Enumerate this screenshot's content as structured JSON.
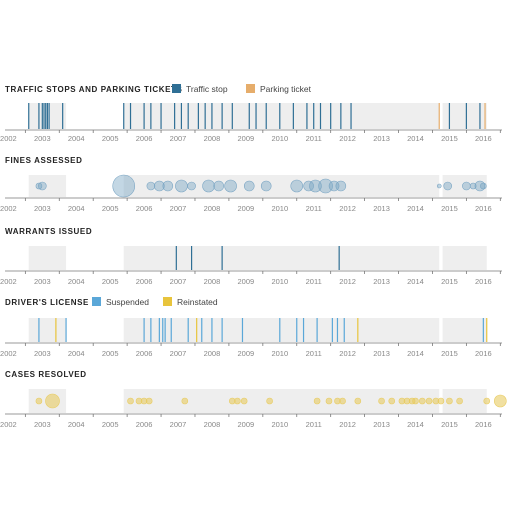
{
  "colors": {
    "traffic": "#2f6f95",
    "parking": "#e6ad6b",
    "suspended": "#5aa7d8",
    "reinstated": "#e8c43c",
    "fines": "#7ba6c4",
    "cases": "#e8cc62",
    "band": "#eeeeee",
    "axis": "#777777"
  },
  "chart_data": [
    {
      "type": "timeline",
      "title": "TRAFFIC STOPS AND PARKING TICKETS",
      "legend": [
        {
          "label": "Traffic stop",
          "color": "#2f6f95"
        },
        {
          "label": "Parking ticket",
          "color": "#e6ad6b"
        }
      ],
      "shaded_ranges": [
        [
          2002.6,
          2003.7
        ],
        [
          2005.4,
          2014.7
        ],
        [
          2014.8,
          2016.1
        ]
      ],
      "events": [
        {
          "x": 2002.6,
          "series": "Traffic stop"
        },
        {
          "x": 2002.9,
          "series": "Traffic stop"
        },
        {
          "x": 2003.0,
          "series": "Traffic stop"
        },
        {
          "x": 2003.05,
          "series": "Traffic stop"
        },
        {
          "x": 2003.1,
          "series": "Traffic stop"
        },
        {
          "x": 2003.15,
          "series": "Traffic stop"
        },
        {
          "x": 2003.2,
          "series": "Traffic stop"
        },
        {
          "x": 2003.6,
          "series": "Traffic stop"
        },
        {
          "x": 2005.4,
          "series": "Traffic stop"
        },
        {
          "x": 2005.6,
          "series": "Traffic stop"
        },
        {
          "x": 2006.0,
          "series": "Traffic stop"
        },
        {
          "x": 2006.2,
          "series": "Traffic stop"
        },
        {
          "x": 2006.5,
          "series": "Traffic stop"
        },
        {
          "x": 2006.9,
          "series": "Traffic stop"
        },
        {
          "x": 2007.1,
          "series": "Traffic stop"
        },
        {
          "x": 2007.3,
          "series": "Traffic stop"
        },
        {
          "x": 2007.6,
          "series": "Traffic stop"
        },
        {
          "x": 2007.8,
          "series": "Traffic stop"
        },
        {
          "x": 2008.0,
          "series": "Traffic stop"
        },
        {
          "x": 2008.3,
          "series": "Traffic stop"
        },
        {
          "x": 2008.6,
          "series": "Traffic stop"
        },
        {
          "x": 2009.1,
          "series": "Traffic stop"
        },
        {
          "x": 2009.3,
          "series": "Traffic stop"
        },
        {
          "x": 2009.6,
          "series": "Traffic stop"
        },
        {
          "x": 2010.0,
          "series": "Traffic stop"
        },
        {
          "x": 2010.4,
          "series": "Traffic stop"
        },
        {
          "x": 2010.8,
          "series": "Traffic stop"
        },
        {
          "x": 2011.0,
          "series": "Traffic stop"
        },
        {
          "x": 2011.2,
          "series": "Traffic stop"
        },
        {
          "x": 2011.5,
          "series": "Traffic stop"
        },
        {
          "x": 2011.8,
          "series": "Traffic stop"
        },
        {
          "x": 2012.1,
          "series": "Traffic stop"
        },
        {
          "x": 2014.7,
          "series": "Parking ticket"
        },
        {
          "x": 2015.0,
          "series": "Traffic stop"
        },
        {
          "x": 2015.5,
          "series": "Traffic stop"
        },
        {
          "x": 2015.9,
          "series": "Traffic stop"
        },
        {
          "x": 2016.05,
          "series": "Parking ticket"
        }
      ]
    },
    {
      "type": "bubble-timeline",
      "title": "FINES ASSESSED",
      "shaded_ranges": [
        [
          2002.6,
          2003.7
        ],
        [
          2005.4,
          2014.7
        ],
        [
          2014.8,
          2016.1
        ]
      ],
      "points": [
        {
          "x": 2002.9,
          "size": 3
        },
        {
          "x": 2003.0,
          "size": 4
        },
        {
          "x": 2005.4,
          "size": 11
        },
        {
          "x": 2006.2,
          "size": 4
        },
        {
          "x": 2006.45,
          "size": 5
        },
        {
          "x": 2006.7,
          "size": 5
        },
        {
          "x": 2007.1,
          "size": 6
        },
        {
          "x": 2007.4,
          "size": 4
        },
        {
          "x": 2007.9,
          "size": 6
        },
        {
          "x": 2008.2,
          "size": 5
        },
        {
          "x": 2008.55,
          "size": 6
        },
        {
          "x": 2009.1,
          "size": 5
        },
        {
          "x": 2009.6,
          "size": 5
        },
        {
          "x": 2010.5,
          "size": 6
        },
        {
          "x": 2010.85,
          "size": 5
        },
        {
          "x": 2011.05,
          "size": 6
        },
        {
          "x": 2011.35,
          "size": 7
        },
        {
          "x": 2011.6,
          "size": 5
        },
        {
          "x": 2011.8,
          "size": 5
        },
        {
          "x": 2014.7,
          "size": 2
        },
        {
          "x": 2014.95,
          "size": 4
        },
        {
          "x": 2015.5,
          "size": 4
        },
        {
          "x": 2015.7,
          "size": 3
        },
        {
          "x": 2015.9,
          "size": 5
        },
        {
          "x": 2016.0,
          "size": 3
        }
      ]
    },
    {
      "type": "timeline",
      "title": "WARRANTS ISSUED",
      "shaded_ranges": [
        [
          2002.6,
          2003.7
        ],
        [
          2005.4,
          2014.7
        ],
        [
          2014.8,
          2016.1
        ]
      ],
      "events": [
        {
          "x": 2006.95
        },
        {
          "x": 2007.4
        },
        {
          "x": 2008.3
        },
        {
          "x": 2011.75
        }
      ]
    },
    {
      "type": "timeline",
      "title": "DRIVER'S LICENSE",
      "legend": [
        {
          "label": "Suspended",
          "color": "#5aa7d8"
        },
        {
          "label": "Reinstated",
          "color": "#e8c43c"
        }
      ],
      "shaded_ranges": [
        [
          2002.6,
          2003.7
        ],
        [
          2005.4,
          2014.7
        ],
        [
          2014.8,
          2016.1
        ]
      ],
      "events": [
        {
          "x": 2002.9,
          "series": "Suspended"
        },
        {
          "x": 2003.4,
          "series": "Reinstated"
        },
        {
          "x": 2003.7,
          "series": "Suspended"
        },
        {
          "x": 2006.0,
          "series": "Suspended"
        },
        {
          "x": 2006.2,
          "series": "Suspended"
        },
        {
          "x": 2006.45,
          "series": "Suspended"
        },
        {
          "x": 2006.55,
          "series": "Suspended"
        },
        {
          "x": 2006.62,
          "series": "Suspended"
        },
        {
          "x": 2006.8,
          "series": "Suspended"
        },
        {
          "x": 2007.3,
          "series": "Suspended"
        },
        {
          "x": 2007.55,
          "series": "Reinstated"
        },
        {
          "x": 2007.7,
          "series": "Suspended"
        },
        {
          "x": 2008.0,
          "series": "Suspended"
        },
        {
          "x": 2008.3,
          "series": "Suspended"
        },
        {
          "x": 2008.9,
          "series": "Suspended"
        },
        {
          "x": 2010.0,
          "series": "Suspended"
        },
        {
          "x": 2010.5,
          "series": "Suspended"
        },
        {
          "x": 2010.7,
          "series": "Suspended"
        },
        {
          "x": 2011.1,
          "series": "Suspended"
        },
        {
          "x": 2011.55,
          "series": "Suspended"
        },
        {
          "x": 2011.7,
          "series": "Suspended"
        },
        {
          "x": 2011.9,
          "series": "Suspended"
        },
        {
          "x": 2012.3,
          "series": "Reinstated"
        },
        {
          "x": 2016.0,
          "series": "Suspended"
        },
        {
          "x": 2016.1,
          "series": "Reinstated"
        }
      ]
    },
    {
      "type": "bubble-timeline",
      "title": "CASES RESOLVED",
      "shaded_ranges": [
        [
          2002.6,
          2003.7
        ],
        [
          2005.4,
          2014.7
        ],
        [
          2014.8,
          2016.1
        ]
      ],
      "points": [
        {
          "x": 2002.9,
          "size": 3
        },
        {
          "x": 2003.3,
          "size": 7
        },
        {
          "x": 2005.6,
          "size": 3
        },
        {
          "x": 2005.85,
          "size": 3
        },
        {
          "x": 2006.0,
          "size": 3
        },
        {
          "x": 2006.15,
          "size": 3
        },
        {
          "x": 2007.2,
          "size": 3
        },
        {
          "x": 2008.6,
          "size": 3
        },
        {
          "x": 2008.75,
          "size": 3
        },
        {
          "x": 2008.95,
          "size": 3
        },
        {
          "x": 2009.7,
          "size": 3
        },
        {
          "x": 2011.1,
          "size": 3
        },
        {
          "x": 2011.45,
          "size": 3
        },
        {
          "x": 2011.7,
          "size": 3
        },
        {
          "x": 2011.85,
          "size": 3
        },
        {
          "x": 2012.3,
          "size": 3
        },
        {
          "x": 2013.0,
          "size": 3
        },
        {
          "x": 2013.3,
          "size": 3
        },
        {
          "x": 2013.6,
          "size": 3
        },
        {
          "x": 2013.75,
          "size": 3
        },
        {
          "x": 2013.9,
          "size": 3
        },
        {
          "x": 2014.0,
          "size": 3
        },
        {
          "x": 2014.2,
          "size": 3
        },
        {
          "x": 2014.4,
          "size": 3
        },
        {
          "x": 2014.6,
          "size": 3
        },
        {
          "x": 2014.75,
          "size": 3
        },
        {
          "x": 2015.0,
          "size": 3
        },
        {
          "x": 2015.3,
          "size": 3
        },
        {
          "x": 2016.1,
          "size": 3
        },
        {
          "x": 2016.5,
          "size": 6
        }
      ]
    }
  ],
  "axis": {
    "range": [
      2001.9,
      2016.55
    ],
    "ticks": [
      "2002",
      "2003",
      "2004",
      "2005",
      "2006",
      "2007",
      "2008",
      "2009",
      "2010",
      "2011",
      "2012",
      "2013",
      "2014",
      "2015",
      "2016"
    ]
  }
}
